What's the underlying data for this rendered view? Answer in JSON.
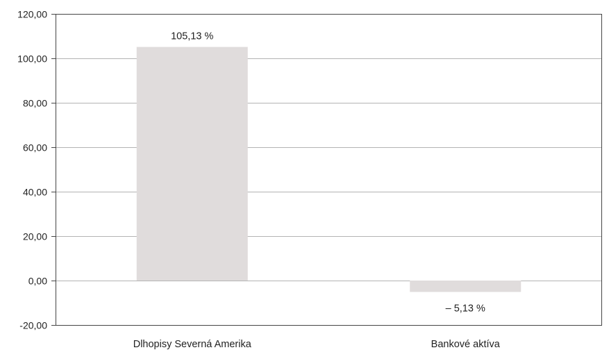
{
  "chart_data": {
    "type": "bar",
    "title": "",
    "xlabel": "",
    "ylabel": "",
    "categories": [
      "Dlhopisy Severná Amerika",
      "Bankové aktíva"
    ],
    "values": [
      105.13,
      -5.13
    ],
    "data_labels": [
      "105,13 %",
      "–  5,13 %"
    ],
    "ylim": [
      -20,
      120
    ],
    "yticks": [
      -20,
      0,
      20,
      40,
      60,
      80,
      100,
      120
    ],
    "ytick_labels": [
      "-20,00",
      "0,00",
      "20,00",
      "40,00",
      "60,00",
      "80,00",
      "100,00",
      "120,00"
    ],
    "grid": true,
    "legend": "none",
    "colors": {
      "bar": "#e0dcdc",
      "grid": "#9a9a9a",
      "axis": "#444444"
    }
  }
}
